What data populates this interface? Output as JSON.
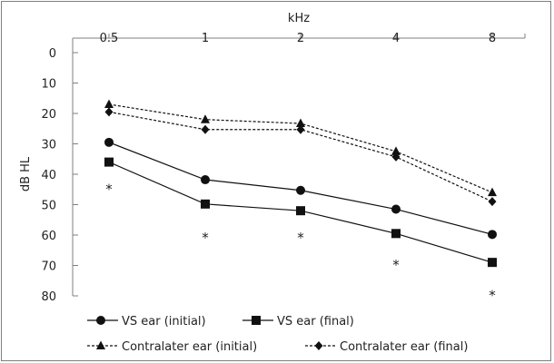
{
  "chart_data": {
    "type": "line",
    "xlabel": "kHz",
    "ylabel": "dB HL",
    "x_categories": [
      "0.5",
      "1",
      "2",
      "4",
      "8"
    ],
    "y_ticks": [
      0,
      10,
      20,
      30,
      40,
      50,
      60,
      70,
      80
    ],
    "ylim": [
      0,
      80
    ],
    "y_inverted": true,
    "grid": false,
    "legend_position": "bottom",
    "series": [
      {
        "name": "VS ear (initial)",
        "marker": "circle",
        "line": "solid",
        "values": [
          29.5,
          41.8,
          45.3,
          51.5,
          59.8
        ]
      },
      {
        "name": "VS ear (final)",
        "marker": "square",
        "line": "solid",
        "values": [
          36,
          49.8,
          52,
          59.5,
          69
        ]
      },
      {
        "name": "Contralater ear (initial)",
        "marker": "triangle",
        "line": "dashed",
        "values": [
          17,
          22,
          23.3,
          32.5,
          46
        ]
      },
      {
        "name": "Contralater ear (final)",
        "marker": "diamond",
        "line": "dashed",
        "values": [
          19.5,
          25.3,
          25.3,
          34.3,
          49
        ]
      }
    ],
    "annotations": [
      {
        "text": "*",
        "x": "0.5",
        "y": 44
      },
      {
        "text": "*",
        "x": "1",
        "y": 60
      },
      {
        "text": "*",
        "x": "2",
        "y": 60
      },
      {
        "text": "*",
        "x": "4",
        "y": 69
      },
      {
        "text": "*",
        "x": "8",
        "y": 79
      }
    ],
    "colors": {
      "line": "#111111",
      "axis": "#7f7f7f",
      "text": "#222222"
    }
  }
}
